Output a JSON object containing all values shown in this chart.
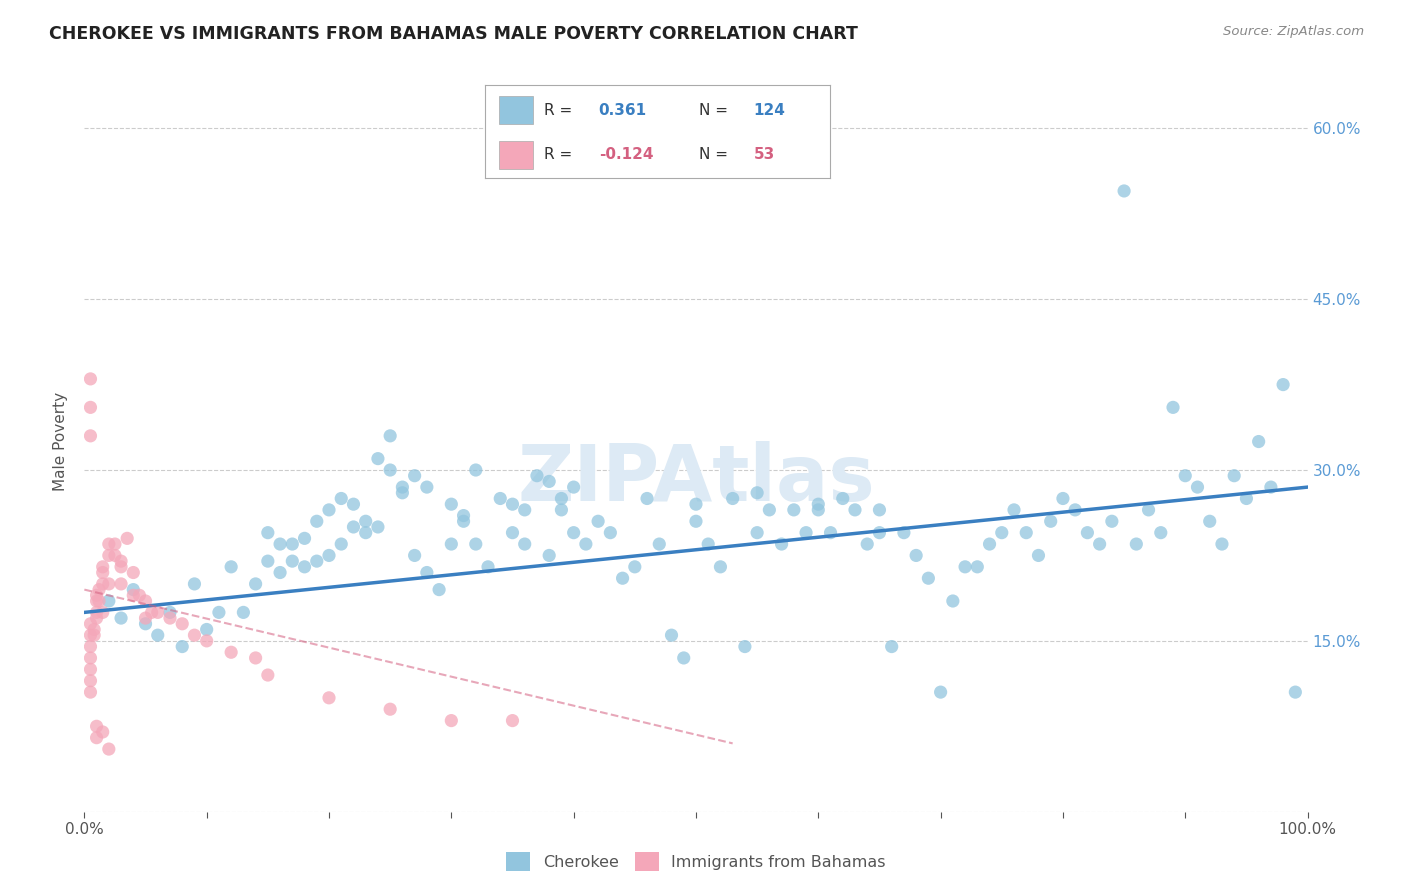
{
  "title": "CHEROKEE VS IMMIGRANTS FROM BAHAMAS MALE POVERTY CORRELATION CHART",
  "source": "Source: ZipAtlas.com",
  "ylabel": "Male Poverty",
  "xlim": [
    0,
    1.0
  ],
  "ylim": [
    0,
    0.65
  ],
  "x_ticks": [
    0.0,
    0.1,
    0.2,
    0.3,
    0.4,
    0.5,
    0.6,
    0.7,
    0.8,
    0.9,
    1.0
  ],
  "y_ticks": [
    0.0,
    0.15,
    0.3,
    0.45,
    0.6
  ],
  "legend_blue_R": "0.361",
  "legend_blue_N": "124",
  "legend_pink_R": "-0.124",
  "legend_pink_N": "53",
  "blue_color": "#92c5de",
  "pink_color": "#f4a7b9",
  "trendline_blue_color": "#3a7fc1",
  "trendline_pink_color": "#d46080",
  "background_color": "#ffffff",
  "grid_color": "#cccccc",
  "blue_scatter_x": [
    0.02,
    0.03,
    0.04,
    0.05,
    0.06,
    0.07,
    0.08,
    0.09,
    0.1,
    0.11,
    0.12,
    0.13,
    0.14,
    0.15,
    0.16,
    0.17,
    0.18,
    0.19,
    0.2,
    0.21,
    0.22,
    0.23,
    0.24,
    0.25,
    0.26,
    0.27,
    0.28,
    0.29,
    0.3,
    0.31,
    0.32,
    0.33,
    0.34,
    0.35,
    0.36,
    0.37,
    0.38,
    0.39,
    0.4,
    0.41,
    0.42,
    0.43,
    0.44,
    0.45,
    0.46,
    0.47,
    0.48,
    0.49,
    0.5,
    0.51,
    0.52,
    0.53,
    0.54,
    0.55,
    0.56,
    0.57,
    0.58,
    0.59,
    0.6,
    0.61,
    0.62,
    0.63,
    0.64,
    0.65,
    0.66,
    0.67,
    0.68,
    0.69,
    0.7,
    0.71,
    0.72,
    0.73,
    0.74,
    0.75,
    0.76,
    0.77,
    0.78,
    0.79,
    0.8,
    0.81,
    0.82,
    0.83,
    0.84,
    0.85,
    0.86,
    0.87,
    0.88,
    0.89,
    0.9,
    0.91,
    0.92,
    0.93,
    0.94,
    0.95,
    0.96,
    0.97,
    0.98,
    0.99,
    0.25,
    0.26,
    0.3,
    0.31,
    0.32,
    0.27,
    0.28,
    0.35,
    0.36,
    0.38,
    0.39,
    0.4,
    0.15,
    0.16,
    0.17,
    0.18,
    0.19,
    0.2,
    0.21,
    0.22,
    0.23,
    0.24,
    0.5,
    0.55,
    0.6,
    0.65
  ],
  "blue_scatter_y": [
    0.185,
    0.17,
    0.195,
    0.165,
    0.155,
    0.175,
    0.145,
    0.2,
    0.16,
    0.175,
    0.215,
    0.175,
    0.2,
    0.245,
    0.235,
    0.22,
    0.24,
    0.255,
    0.265,
    0.275,
    0.27,
    0.255,
    0.31,
    0.3,
    0.285,
    0.225,
    0.21,
    0.195,
    0.235,
    0.255,
    0.235,
    0.215,
    0.275,
    0.245,
    0.235,
    0.295,
    0.225,
    0.265,
    0.245,
    0.235,
    0.255,
    0.245,
    0.205,
    0.215,
    0.275,
    0.235,
    0.155,
    0.135,
    0.255,
    0.235,
    0.215,
    0.275,
    0.145,
    0.245,
    0.265,
    0.235,
    0.265,
    0.245,
    0.265,
    0.245,
    0.275,
    0.265,
    0.235,
    0.245,
    0.145,
    0.245,
    0.225,
    0.205,
    0.105,
    0.185,
    0.215,
    0.215,
    0.235,
    0.245,
    0.265,
    0.245,
    0.225,
    0.255,
    0.275,
    0.265,
    0.245,
    0.235,
    0.255,
    0.545,
    0.235,
    0.265,
    0.245,
    0.355,
    0.295,
    0.285,
    0.255,
    0.235,
    0.295,
    0.275,
    0.325,
    0.285,
    0.375,
    0.105,
    0.33,
    0.28,
    0.27,
    0.26,
    0.3,
    0.295,
    0.285,
    0.27,
    0.265,
    0.29,
    0.275,
    0.285,
    0.22,
    0.21,
    0.235,
    0.215,
    0.22,
    0.225,
    0.235,
    0.25,
    0.245,
    0.25,
    0.27,
    0.28,
    0.27,
    0.265
  ],
  "pink_scatter_x": [
    0.005,
    0.005,
    0.005,
    0.005,
    0.005,
    0.005,
    0.005,
    0.008,
    0.008,
    0.01,
    0.01,
    0.01,
    0.01,
    0.012,
    0.012,
    0.015,
    0.015,
    0.015,
    0.015,
    0.02,
    0.02,
    0.02,
    0.025,
    0.025,
    0.03,
    0.03,
    0.03,
    0.035,
    0.04,
    0.04,
    0.045,
    0.05,
    0.05,
    0.055,
    0.06,
    0.07,
    0.08,
    0.09,
    0.1,
    0.12,
    0.14,
    0.15,
    0.2,
    0.25,
    0.3,
    0.35,
    0.005,
    0.005,
    0.005,
    0.01,
    0.01,
    0.015,
    0.02
  ],
  "pink_scatter_y": [
    0.165,
    0.155,
    0.145,
    0.135,
    0.125,
    0.115,
    0.105,
    0.16,
    0.155,
    0.19,
    0.185,
    0.175,
    0.17,
    0.195,
    0.185,
    0.215,
    0.21,
    0.2,
    0.175,
    0.235,
    0.225,
    0.2,
    0.235,
    0.225,
    0.22,
    0.215,
    0.2,
    0.24,
    0.21,
    0.19,
    0.19,
    0.185,
    0.17,
    0.175,
    0.175,
    0.17,
    0.165,
    0.155,
    0.15,
    0.14,
    0.135,
    0.12,
    0.1,
    0.09,
    0.08,
    0.08,
    0.38,
    0.355,
    0.33,
    0.075,
    0.065,
    0.07,
    0.055
  ],
  "trendline_blue_start_x": 0.0,
  "trendline_blue_end_x": 1.0,
  "trendline_blue_start_y": 0.175,
  "trendline_blue_end_y": 0.285,
  "trendline_pink_start_x": 0.0,
  "trendline_pink_end_x": 0.53,
  "trendline_pink_start_y": 0.195,
  "trendline_pink_end_y": 0.06
}
